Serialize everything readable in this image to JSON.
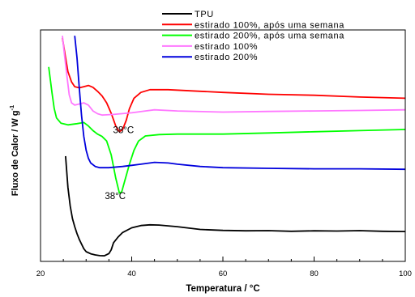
{
  "chart_data": {
    "type": "line",
    "xlabel": "Temperatura / °C",
    "ylabel": "Fluxo de Calor / W g",
    "ylabel_sup": "-1",
    "xlim": [
      20,
      100
    ],
    "x_ticks": [
      20,
      40,
      60,
      80,
      100
    ],
    "x_tick_labels": [
      "20",
      "40",
      "60",
      "80",
      "100"
    ],
    "y_ticks_shown": false,
    "grid": false,
    "legend_position": "top-right",
    "annotations": [
      {
        "text": "38°C",
        "x": 38.2,
        "y": 5.55
      },
      {
        "text": "38°C",
        "x": 36.4,
        "y": 2.7
      }
    ],
    "series": [
      {
        "name": "TPU",
        "color": "#000000",
        "points": [
          [
            25.5,
            4.55
          ],
          [
            26,
            3.2
          ],
          [
            26.5,
            2.4
          ],
          [
            27,
            1.85
          ],
          [
            27.5,
            1.5
          ],
          [
            28,
            1.2
          ],
          [
            28.5,
            0.95
          ],
          [
            29,
            0.75
          ],
          [
            29.5,
            0.55
          ],
          [
            30,
            0.42
          ],
          [
            31,
            0.33
          ],
          [
            32,
            0.28
          ],
          [
            33,
            0.25
          ],
          [
            34,
            0.24
          ],
          [
            35,
            0.34
          ],
          [
            35.5,
            0.5
          ],
          [
            36,
            0.8
          ],
          [
            37,
            1.05
          ],
          [
            38,
            1.25
          ],
          [
            40,
            1.45
          ],
          [
            42,
            1.55
          ],
          [
            44,
            1.58
          ],
          [
            46,
            1.57
          ],
          [
            50,
            1.5
          ],
          [
            55,
            1.38
          ],
          [
            60,
            1.34
          ],
          [
            65,
            1.32
          ],
          [
            70,
            1.33
          ],
          [
            75,
            1.3
          ],
          [
            80,
            1.32
          ],
          [
            85,
            1.31
          ],
          [
            90,
            1.33
          ],
          [
            95,
            1.3
          ],
          [
            100,
            1.29
          ]
        ]
      },
      {
        "name": "estirado 100%, após uma semana",
        "color": "#ff0000",
        "points": [
          [
            24.8,
            9.65
          ],
          [
            25.5,
            8.8
          ],
          [
            26,
            8.2
          ],
          [
            26.8,
            7.75
          ],
          [
            27.5,
            7.55
          ],
          [
            28.5,
            7.5
          ],
          [
            29.5,
            7.55
          ],
          [
            30.5,
            7.6
          ],
          [
            31.5,
            7.52
          ],
          [
            32.5,
            7.35
          ],
          [
            33.5,
            7.15
          ],
          [
            34.5,
            6.85
          ],
          [
            35.5,
            6.4
          ],
          [
            36.5,
            5.85
          ],
          [
            37.3,
            5.6
          ],
          [
            38,
            5.7
          ],
          [
            38.8,
            6.1
          ],
          [
            39.5,
            6.6
          ],
          [
            40.5,
            7.05
          ],
          [
            42,
            7.3
          ],
          [
            44,
            7.42
          ],
          [
            48,
            7.42
          ],
          [
            55,
            7.35
          ],
          [
            60,
            7.3
          ],
          [
            70,
            7.22
          ],
          [
            80,
            7.18
          ],
          [
            90,
            7.1
          ],
          [
            100,
            7.05
          ]
        ]
      },
      {
        "name": "estirado 200%, após uma semana",
        "color": "#00ff00",
        "points": [
          [
            21.8,
            8.4
          ],
          [
            22.5,
            7.3
          ],
          [
            23,
            6.6
          ],
          [
            23.5,
            6.2
          ],
          [
            24.5,
            5.97
          ],
          [
            26,
            5.9
          ],
          [
            28,
            5.95
          ],
          [
            29.5,
            6.0
          ],
          [
            30.5,
            5.85
          ],
          [
            31.5,
            5.65
          ],
          [
            32.5,
            5.5
          ],
          [
            33.5,
            5.4
          ],
          [
            34.5,
            5.2
          ],
          [
            35.5,
            4.6
          ],
          [
            36.5,
            3.6
          ],
          [
            37.3,
            2.95
          ],
          [
            37.8,
            3.0
          ],
          [
            38.5,
            3.5
          ],
          [
            39.5,
            4.2
          ],
          [
            40.5,
            4.8
          ],
          [
            41.5,
            5.2
          ],
          [
            43,
            5.42
          ],
          [
            46,
            5.48
          ],
          [
            50,
            5.5
          ],
          [
            60,
            5.5
          ],
          [
            70,
            5.55
          ],
          [
            80,
            5.6
          ],
          [
            90,
            5.65
          ],
          [
            100,
            5.7
          ]
        ]
      },
      {
        "name": "estirado 100%",
        "color": "#ff77ff",
        "points": [
          [
            24.8,
            9.75
          ],
          [
            25.2,
            9.0
          ],
          [
            25.8,
            8.0
          ],
          [
            26.3,
            7.2
          ],
          [
            26.8,
            6.85
          ],
          [
            27.5,
            6.75
          ],
          [
            28.5,
            6.8
          ],
          [
            29.5,
            6.85
          ],
          [
            30.5,
            6.75
          ],
          [
            31.5,
            6.5
          ],
          [
            32.5,
            6.38
          ],
          [
            33.5,
            6.32
          ],
          [
            36,
            6.35
          ],
          [
            40,
            6.42
          ],
          [
            43,
            6.5
          ],
          [
            45,
            6.55
          ],
          [
            50,
            6.5
          ],
          [
            60,
            6.45
          ],
          [
            70,
            6.48
          ],
          [
            80,
            6.5
          ],
          [
            90,
            6.52
          ],
          [
            100,
            6.55
          ]
        ]
      },
      {
        "name": "estirado 200%",
        "color": "#0000dd",
        "points": [
          [
            27.5,
            9.75
          ],
          [
            28,
            8.8
          ],
          [
            28.5,
            7.5
          ],
          [
            29,
            6.3
          ],
          [
            29.5,
            5.4
          ],
          [
            30,
            4.8
          ],
          [
            30.5,
            4.45
          ],
          [
            31,
            4.25
          ],
          [
            32,
            4.1
          ],
          [
            33,
            4.05
          ],
          [
            35,
            4.05
          ],
          [
            38,
            4.1
          ],
          [
            40,
            4.15
          ],
          [
            42,
            4.2
          ],
          [
            45,
            4.28
          ],
          [
            48,
            4.25
          ],
          [
            50,
            4.2
          ],
          [
            55,
            4.1
          ],
          [
            60,
            4.05
          ],
          [
            70,
            4.02
          ],
          [
            80,
            4.0
          ],
          [
            90,
            4.0
          ],
          [
            100,
            3.98
          ]
        ]
      }
    ]
  }
}
